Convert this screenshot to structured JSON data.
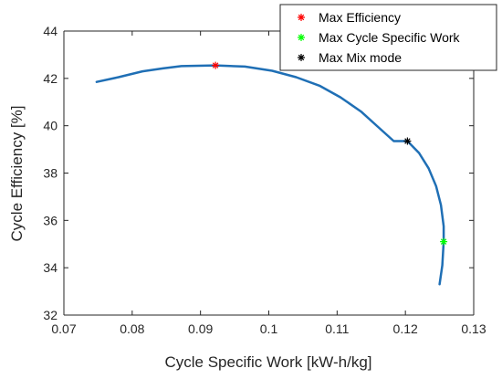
{
  "chart_data": {
    "type": "line",
    "title": "",
    "xlabel": "Cycle Specific Work [kW-h/kg]",
    "ylabel": "Cycle Efficiency [%]",
    "xlim": [
      0.07,
      0.13
    ],
    "ylim": [
      32,
      44
    ],
    "xticks": [
      0.07,
      0.08,
      0.09,
      0.1,
      0.11,
      0.12,
      0.13
    ],
    "xtick_labels": [
      "0.07",
      "0.08",
      "0.09",
      "0.1",
      "0.11",
      "0.12",
      "0.13"
    ],
    "yticks": [
      32,
      34,
      36,
      38,
      40,
      42,
      44
    ],
    "ytick_labels": [
      "32",
      "34",
      "36",
      "38",
      "40",
      "42",
      "44"
    ],
    "grid": false,
    "legend_position": "top-right",
    "series": [
      {
        "type": "line",
        "color": "#1f6fb5",
        "x": [
          0.0748,
          0.078,
          0.0815,
          0.0845,
          0.0872,
          0.0922,
          0.0965,
          0.1005,
          0.104,
          0.1075,
          0.1105,
          0.1135,
          0.116,
          0.1183,
          0.1203,
          0.122,
          0.1234,
          0.1245,
          0.1252,
          0.1256,
          0.1256,
          0.1254,
          0.125
        ],
        "y": [
          41.85,
          42.05,
          42.3,
          42.42,
          42.52,
          42.55,
          42.5,
          42.32,
          42.05,
          41.68,
          41.2,
          40.6,
          39.95,
          39.35,
          39.35,
          38.85,
          38.2,
          37.45,
          36.65,
          35.75,
          35.1,
          34.1,
          33.3
        ]
      },
      {
        "name": "Max Efficiency",
        "type": "marker",
        "marker": "*",
        "color": "#ff0000",
        "x": [
          0.0922
        ],
        "y": [
          42.55
        ]
      },
      {
        "name": "Max Cycle Specific Work",
        "type": "marker",
        "marker": "*",
        "color": "#00ff00",
        "x": [
          0.1256
        ],
        "y": [
          35.1
        ]
      },
      {
        "name": "Max Mix mode",
        "type": "marker",
        "marker": "*",
        "color": "#000000",
        "x": [
          0.1203
        ],
        "y": [
          39.35
        ]
      }
    ]
  }
}
